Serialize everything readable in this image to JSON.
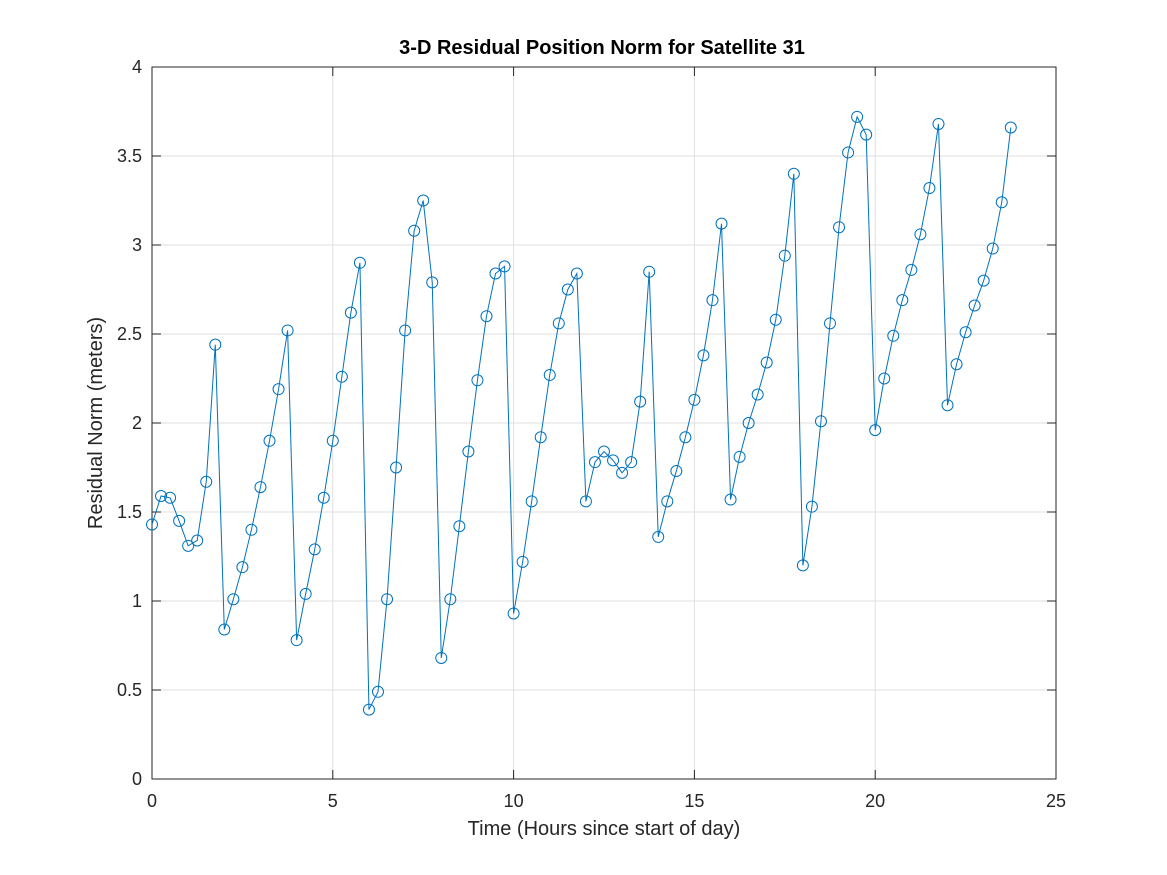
{
  "chart_data": {
    "type": "line",
    "title": "3-D Residual Position Norm for Satellite 31",
    "xlabel": "Time (Hours since start of day)",
    "ylabel": "Residual Norm (meters)",
    "xlim": [
      0,
      25
    ],
    "ylim": [
      0,
      4
    ],
    "xticks": [
      0,
      5,
      10,
      15,
      20,
      25
    ],
    "yticks": [
      0,
      0.5,
      1,
      1.5,
      2,
      2.5,
      3,
      3.5,
      4
    ],
    "xtick_labels": [
      "0",
      "5",
      "10",
      "15",
      "20",
      "25"
    ],
    "ytick_labels": [
      "0",
      "0.5",
      "1",
      "1.5",
      "2",
      "2.5",
      "3",
      "3.5",
      "4"
    ],
    "grid": true,
    "marker": "circle",
    "color": "#0072BD",
    "series": [
      {
        "x": [
          0,
          0.25,
          0.5,
          0.75,
          1,
          1.25,
          1.5,
          1.75,
          2,
          2.25,
          2.5,
          2.75,
          3,
          3.25,
          3.5,
          3.75,
          4,
          4.25,
          4.5,
          4.75,
          5,
          5.25,
          5.5,
          5.75,
          6,
          6.25,
          6.5,
          6.75,
          7,
          7.25,
          7.5,
          7.75,
          8,
          8.25,
          8.5,
          8.75,
          9,
          9.25,
          9.5,
          9.75,
          10,
          10.25,
          10.5,
          10.75,
          11,
          11.25,
          11.5,
          11.75,
          12,
          12.25,
          12.5,
          12.75,
          13,
          13.25,
          13.5,
          13.75,
          14,
          14.25,
          14.5,
          14.75,
          15,
          15.25,
          15.5,
          15.75,
          16,
          16.25,
          16.5,
          16.75,
          17,
          17.25,
          17.5,
          17.75,
          18,
          18.25,
          18.5,
          18.75,
          19,
          19.25,
          19.5,
          19.75,
          20,
          20.25,
          20.5,
          20.75,
          21,
          21.25,
          21.5,
          21.75,
          22,
          22.25,
          22.5,
          22.75,
          23,
          23.25,
          23.5,
          23.75
        ],
        "y": [
          1.43,
          1.59,
          1.58,
          1.45,
          1.31,
          1.34,
          1.67,
          2.44,
          0.84,
          1.01,
          1.19,
          1.4,
          1.64,
          1.9,
          2.19,
          2.52,
          0.78,
          1.04,
          1.29,
          1.58,
          1.9,
          2.26,
          2.62,
          2.9,
          0.39,
          0.49,
          1.01,
          1.75,
          2.52,
          3.08,
          3.25,
          2.79,
          0.68,
          1.01,
          1.42,
          1.84,
          2.24,
          2.6,
          2.84,
          2.88,
          0.93,
          1.22,
          1.56,
          1.92,
          2.27,
          2.56,
          2.75,
          2.84,
          1.56,
          1.78,
          1.84,
          1.79,
          1.72,
          1.78,
          2.12,
          2.85,
          1.36,
          1.56,
          1.73,
          1.92,
          2.13,
          2.38,
          2.69,
          3.12,
          1.57,
          1.81,
          2.0,
          2.16,
          2.34,
          2.58,
          2.94,
          3.4,
          1.2,
          1.53,
          2.01,
          2.56,
          3.1,
          3.52,
          3.72,
          3.62,
          1.96,
          2.25,
          2.49,
          2.69,
          2.86,
          3.06,
          3.32,
          3.68,
          2.1,
          2.33,
          2.51,
          2.66,
          2.8,
          2.98,
          3.24,
          3.66
        ]
      }
    ]
  }
}
